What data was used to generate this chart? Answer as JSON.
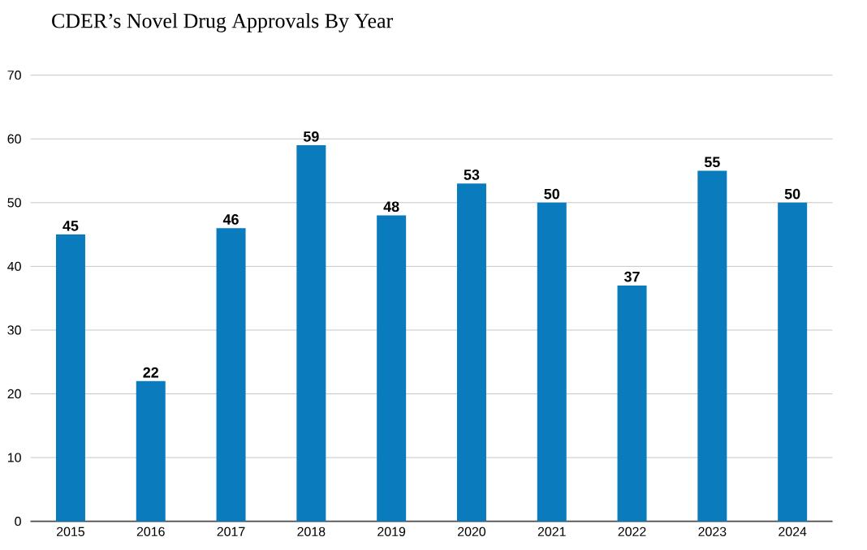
{
  "chart_data": {
    "type": "bar",
    "title": "CDER’s Novel Drug Approvals By Year",
    "categories": [
      "2015",
      "2016",
      "2017",
      "2018",
      "2019",
      "2020",
      "2021",
      "2022",
      "2023",
      "2024"
    ],
    "values": [
      45,
      22,
      46,
      59,
      48,
      53,
      50,
      37,
      55,
      50
    ],
    "color": "#0a7bbd",
    "ylim": [
      0,
      70
    ],
    "yticks": [
      0,
      10,
      20,
      30,
      40,
      50,
      60,
      70
    ],
    "grid": "y",
    "data_labels": true
  }
}
